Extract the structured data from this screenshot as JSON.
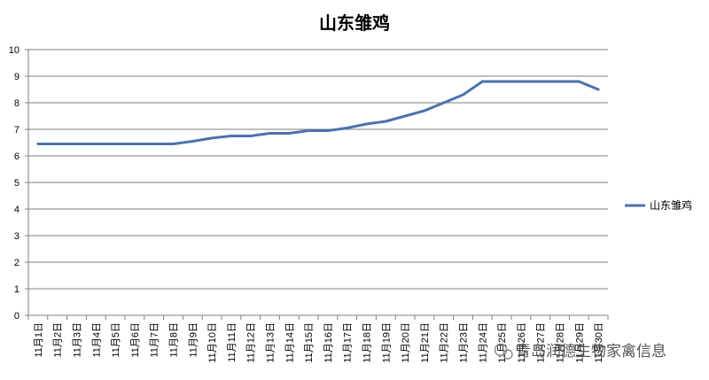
{
  "chart_data": {
    "type": "line",
    "title": "山东雏鸡",
    "xlabel": "",
    "ylabel": "",
    "ylim": [
      0,
      10
    ],
    "yticks": [
      0,
      1,
      2,
      3,
      4,
      5,
      6,
      7,
      8,
      9,
      10
    ],
    "grid": true,
    "legend_position": "right",
    "categories": [
      "11月1日",
      "11月2日",
      "11月3日",
      "11月4日",
      "11月5日",
      "11月6日",
      "11月7日",
      "11月8日",
      "11月9日",
      "11月10日",
      "11月11日",
      "11月12日",
      "11月13日",
      "11月14日",
      "11月15日",
      "11月16日",
      "11月17日",
      "11月18日",
      "11月19日",
      "11月20日",
      "11月21日",
      "11月22日",
      "11月23日",
      "11月24日",
      "11月25日",
      "11月26日",
      "11月27日",
      "11月28日",
      "11月29日",
      "11月30日"
    ],
    "series": [
      {
        "name": "山东雏鸡",
        "color": "#4a72b0",
        "values": [
          6.45,
          6.45,
          6.45,
          6.45,
          6.45,
          6.45,
          6.45,
          6.45,
          6.55,
          6.67,
          6.75,
          6.75,
          6.85,
          6.85,
          6.95,
          6.95,
          7.05,
          7.2,
          7.3,
          7.5,
          7.7,
          8.0,
          8.3,
          8.8,
          8.8,
          8.8,
          8.8,
          8.8,
          8.8,
          8.5
        ]
      }
    ]
  },
  "watermark": {
    "text": "青岛润德生物家禽信息",
    "icon": "wechat-icon"
  }
}
